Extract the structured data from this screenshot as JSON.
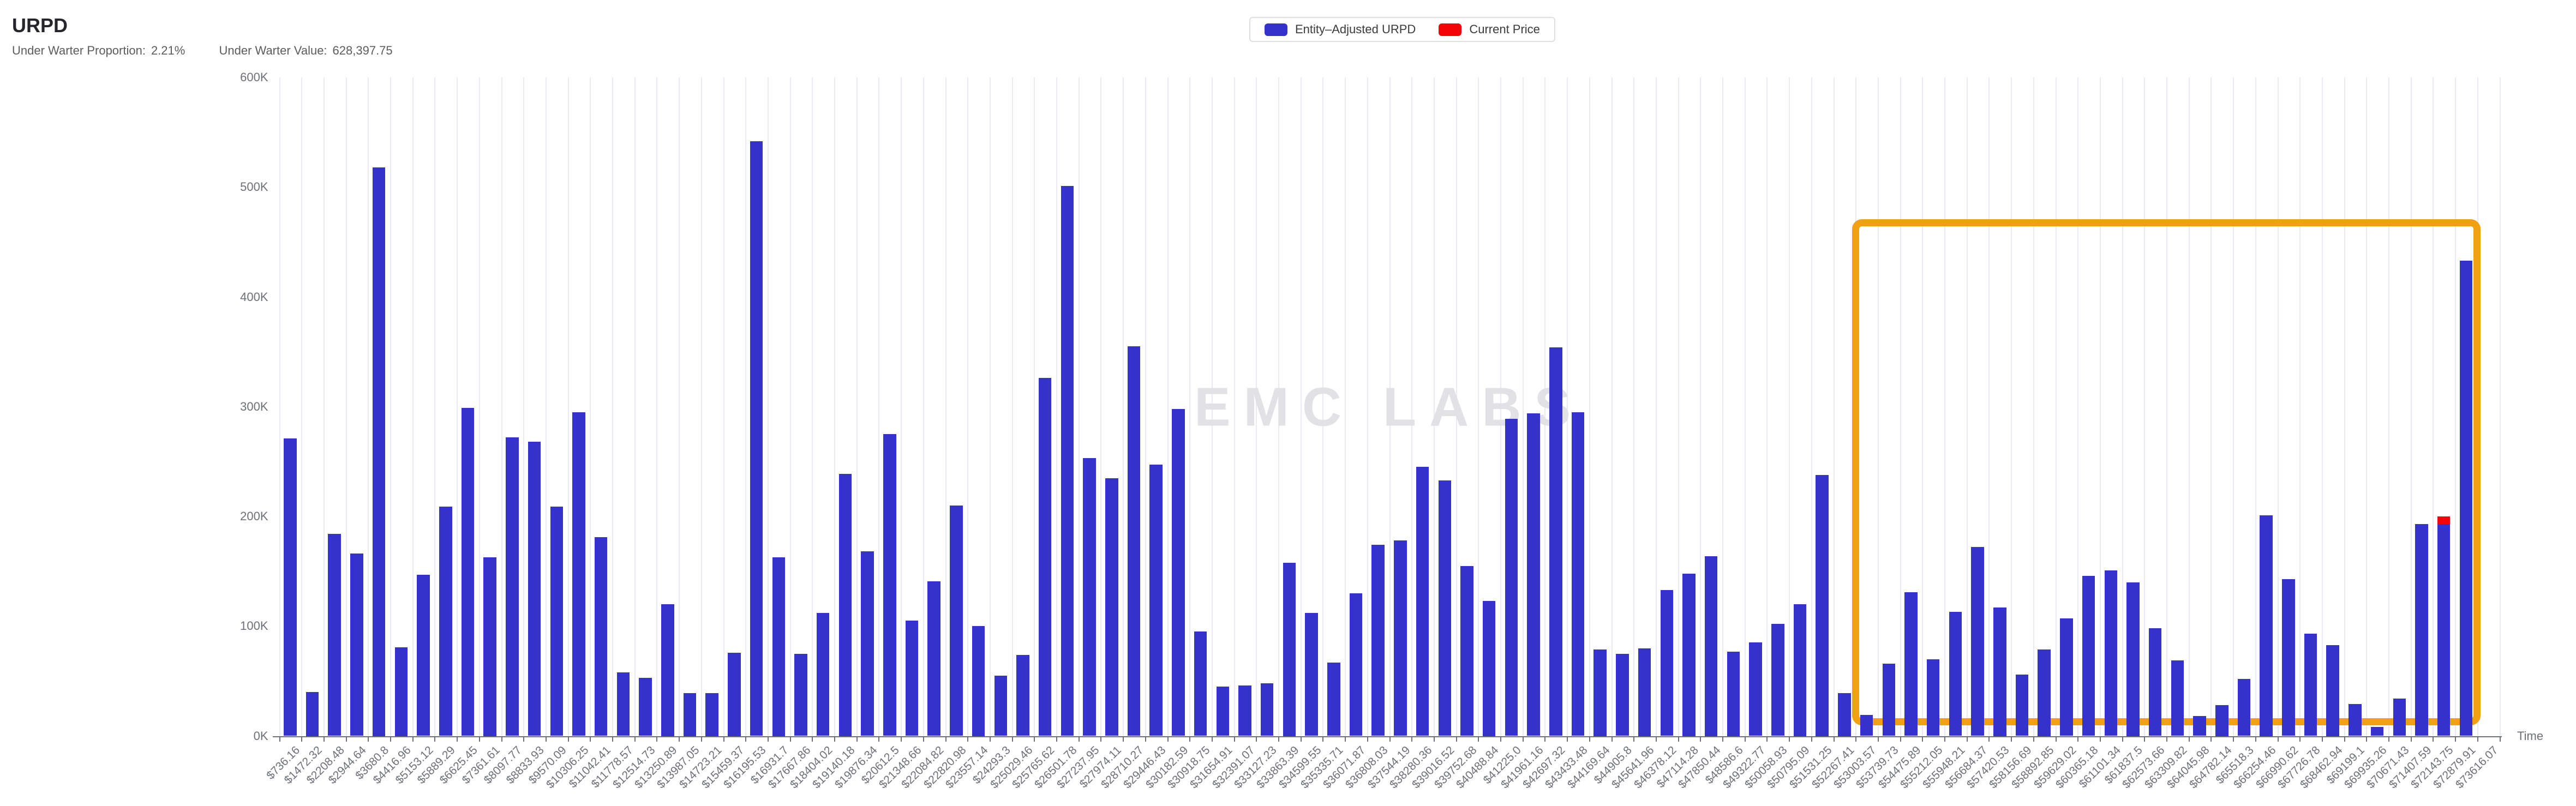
{
  "header": {
    "title": "URPD",
    "stats": [
      {
        "label": "Under Warter Proportion:",
        "value": "2.21%"
      },
      {
        "label": "Under Warter Value:",
        "value": "628,397.75"
      }
    ]
  },
  "legend": {
    "items": [
      {
        "label": "Entity–Adjusted URPD",
        "color": "#3431cd"
      },
      {
        "label": "Current Price",
        "color": "#f40406"
      }
    ]
  },
  "watermark": "EMC LABS",
  "axis": {
    "x_title": "Time",
    "y_ticks": [
      "0K",
      "100K",
      "200K",
      "300K",
      "400K",
      "500K",
      "600K"
    ]
  },
  "chart_data": {
    "type": "bar",
    "title": "URPD",
    "xlabel": "Time",
    "ylabel": "",
    "ylim_k": [
      0,
      600
    ],
    "grid": "vertical-only",
    "legend_position": "top-center",
    "categories": [
      "$736.16",
      "$1472.32",
      "$2208.48",
      "$2944.64",
      "$3680.8",
      "$4416.96",
      "$5153.12",
      "$5889.29",
      "$6625.45",
      "$7361.61",
      "$8097.77",
      "$8833.93",
      "$9570.09",
      "$10306.25",
      "$11042.41",
      "$11778.57",
      "$12514.73",
      "$13250.89",
      "$13987.05",
      "$14723.21",
      "$15459.37",
      "$16195.53",
      "$16931.7",
      "$17667.86",
      "$18404.02",
      "$19140.18",
      "$19876.34",
      "$20612.5",
      "$21348.66",
      "$22084.82",
      "$22820.98",
      "$23557.14",
      "$24293.3",
      "$25029.46",
      "$25765.62",
      "$26501.78",
      "$27237.95",
      "$27974.11",
      "$28710.27",
      "$29446.43",
      "$30182.59",
      "$30918.75",
      "$31654.91",
      "$32391.07",
      "$33127.23",
      "$33863.39",
      "$34599.55",
      "$35335.71",
      "$36071.87",
      "$36808.03",
      "$37544.19",
      "$38280.36",
      "$39016.52",
      "$39752.68",
      "$40488.84",
      "$41225.0",
      "$41961.16",
      "$42697.32",
      "$43433.48",
      "$44169.64",
      "$44905.8",
      "$45641.96",
      "$46378.12",
      "$47114.28",
      "$47850.44",
      "$48586.6",
      "$49322.77",
      "$50058.93",
      "$50795.09",
      "$51531.25",
      "$52267.41",
      "$53003.57",
      "$53739.73",
      "$54475.89",
      "$55212.05",
      "$55948.21",
      "$56684.37",
      "$57420.53",
      "$58156.69",
      "$58892.85",
      "$59629.02",
      "$60365.18",
      "$61101.34",
      "$61837.5",
      "$62573.66",
      "$63309.82",
      "$64045.98",
      "$64782.14",
      "$65518.3",
      "$66254.46",
      "$66990.62",
      "$67726.78",
      "$68462.94",
      "$69199.1",
      "$69935.26",
      "$70671.43",
      "$71407.59",
      "$72143.75",
      "$72879.91",
      "$73616.07"
    ],
    "series": [
      {
        "name": "Entity–Adjusted URPD",
        "color": "#3431cd",
        "unit": "thousand",
        "values_k": [
          271,
          40,
          184,
          166,
          518,
          81,
          147,
          209,
          299,
          163,
          272,
          268,
          209,
          295,
          181,
          58,
          53,
          120,
          39,
          39,
          76,
          542,
          163,
          75,
          112,
          239,
          168,
          275,
          105,
          141,
          210,
          100,
          55,
          74,
          326,
          501,
          253,
          235,
          355,
          247,
          298,
          95,
          45,
          46,
          48,
          158,
          112,
          67,
          130,
          174,
          178,
          245,
          233,
          155,
          123,
          289,
          294,
          354,
          295,
          79,
          75,
          80,
          133,
          148,
          164,
          77,
          85,
          102,
          120,
          238,
          39,
          19,
          66,
          131,
          70,
          113,
          172,
          117,
          56,
          79,
          107,
          146,
          151,
          140,
          98,
          69,
          18,
          28,
          52,
          201,
          143,
          93,
          83,
          29,
          8,
          34,
          193,
          193,
          433,
          0
        ]
      },
      {
        "name": "Current Price",
        "color": "#f40406",
        "marker": {
          "category": "$72143.75",
          "from_k": 193,
          "to_k": 200
        }
      }
    ],
    "annotation_box": {
      "color": "#f0a011",
      "from_category": "$53003.57",
      "to_category": "$73616.07",
      "top_k": 468,
      "bottom_k": 10
    }
  }
}
